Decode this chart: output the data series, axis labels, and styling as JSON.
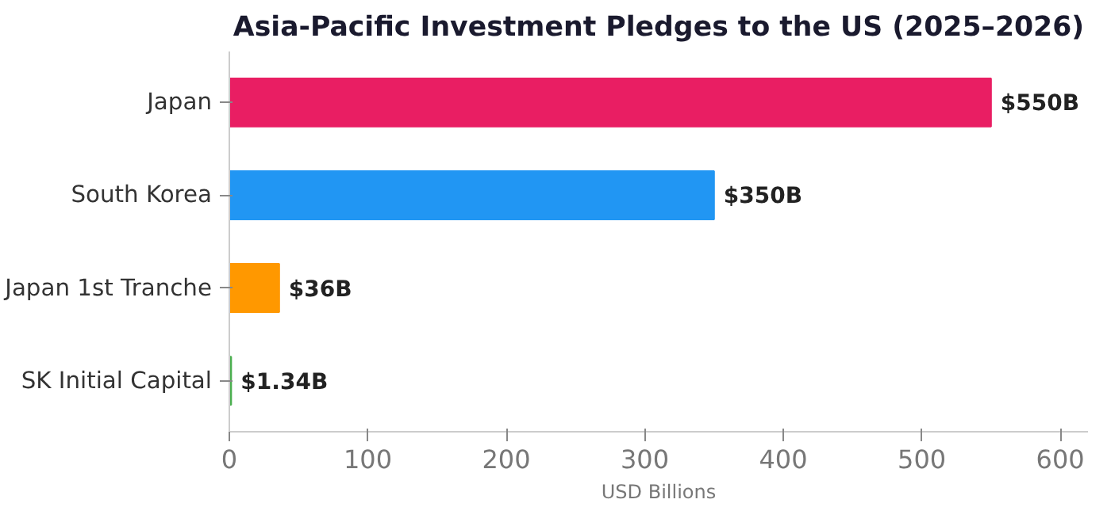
{
  "chart_data": {
    "type": "bar",
    "orientation": "horizontal",
    "title": "Asia-Pacific Investment Pledges to the US (2025–2026)",
    "xlabel": "USD Billions",
    "categories": [
      "Japan",
      "South Korea",
      "Japan 1st Tranche",
      "SK Initial Capital"
    ],
    "values": [
      550,
      350,
      36,
      1.34
    ],
    "colors": [
      "#e91e63",
      "#2196f3",
      "#ff9800",
      "#4caf50"
    ],
    "value_labels": [
      "$550B",
      "$350B",
      "$36B",
      "$1.34B"
    ],
    "xlim": [
      0,
      620
    ],
    "xticks": [
      0,
      100,
      200,
      300,
      400,
      500,
      600
    ],
    "grid": false
  }
}
